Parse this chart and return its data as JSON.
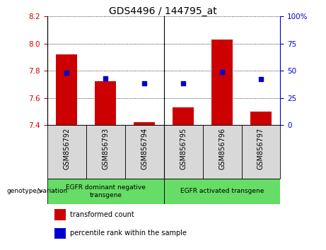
{
  "title": "GDS4496 / 144795_at",
  "samples": [
    "GSM856792",
    "GSM856793",
    "GSM856794",
    "GSM856795",
    "GSM856796",
    "GSM856797"
  ],
  "bar_values": [
    7.92,
    7.72,
    7.42,
    7.53,
    8.03,
    7.5
  ],
  "bar_bottom": 7.4,
  "percentile_values": [
    48,
    43,
    38,
    38,
    49,
    42
  ],
  "ylim_left": [
    7.4,
    8.2
  ],
  "ylim_right": [
    0,
    100
  ],
  "yticks_left": [
    7.4,
    7.6,
    7.8,
    8.0,
    8.2
  ],
  "yticks_right": [
    0,
    25,
    50,
    75,
    100
  ],
  "bar_color": "#cc0000",
  "dot_color": "#0000cc",
  "grid_color": "#000000",
  "left_axis_color": "#cc0000",
  "right_axis_color": "#0000cc",
  "sample_box_color": "#d8d8d8",
  "group_box_color": "#66dd66",
  "group1_label": "EGFR dominant negative\ntransgene",
  "group2_label": "EGFR activated transgene",
  "legend_items": [
    {
      "label": "transformed count",
      "color": "#cc0000"
    },
    {
      "label": "percentile rank within the sample",
      "color": "#0000cc"
    }
  ],
  "genotype_label": "genotype/variation",
  "bar_width": 0.55,
  "title_fontsize": 10,
  "tick_fontsize": 7.5,
  "xlabel_fontsize": 7,
  "legend_fontsize": 7,
  "group_fontsize": 6.5,
  "geno_fontsize": 6.5
}
